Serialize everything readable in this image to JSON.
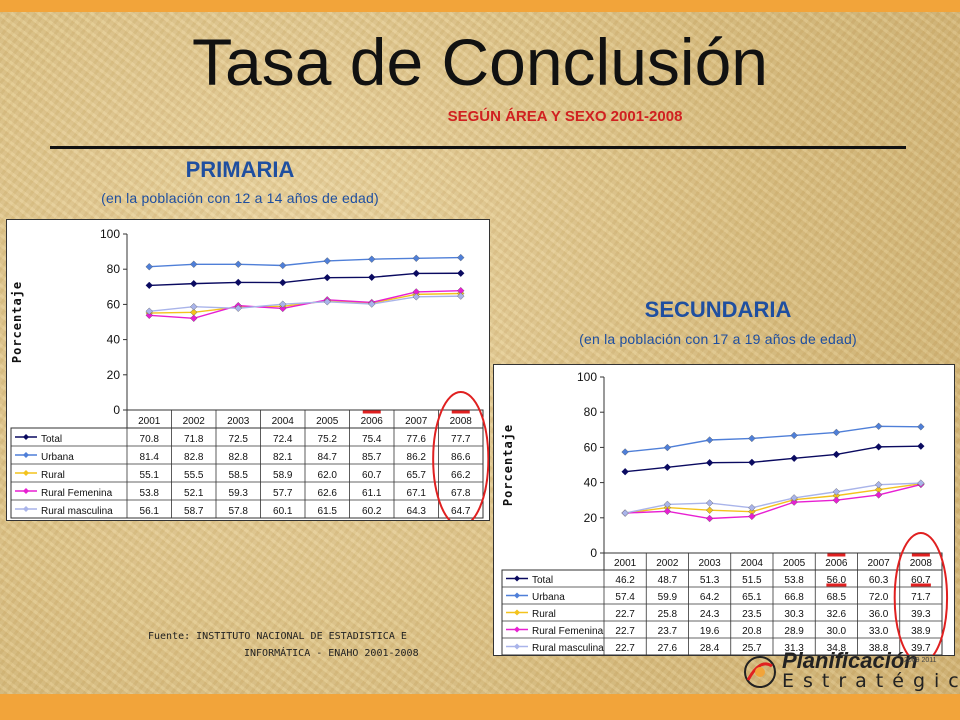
{
  "page": {
    "title": "Tasa de Conclusión",
    "subtitle": "SEGÚN ÁREA Y SEXO 2001-2008",
    "source_line1": "Fuente: INSTITUTO NACIONAL DE ESTADISTICA E",
    "source_line2": "INFORMÁTICA - ENAHO 2001-2008",
    "logo_main": "Planificación",
    "logo_sub": "Estratégica",
    "logo_years": "2009 2011",
    "colors": {
      "accent_bar": "#f2a43a",
      "heading": "#1f4fa0",
      "subtitle": "#d02020",
      "highlight": "#e02020"
    }
  },
  "primaria": {
    "heading": "PRIMARIA",
    "subheading": "(en la población con 12 a 14 años de edad)"
  },
  "secundaria": {
    "heading": "SECUNDARIA",
    "subheading": "(en la población con 17 a 19 años de edad)"
  },
  "chart_data": [
    {
      "type": "line",
      "title": "",
      "ylabel": "Porcentaje",
      "xlabel": "",
      "ylim": [
        0,
        100
      ],
      "yticks": [
        0,
        20,
        40,
        60,
        80,
        100
      ],
      "grid": false,
      "legend": "data-table-below",
      "categories": [
        "2001",
        "2002",
        "2003",
        "2004",
        "2005",
        "2006",
        "2007",
        "2008"
      ],
      "table_values": [
        [
          "70.8",
          "71.8",
          "72.5",
          "72.4",
          "75.2",
          "75.4",
          "77.6",
          "77.7"
        ],
        [
          "81.4",
          "82.8",
          "82.8",
          "82.1",
          "84.7",
          "85.7",
          "86.2",
          "86.6"
        ],
        [
          "55.1",
          "55.5",
          "58.5",
          "58.9",
          "62.0",
          "60.7",
          "65.7",
          "66.2"
        ],
        [
          "53.8",
          "52.1",
          "59.3",
          "57.7",
          "62.6",
          "61.1",
          "67.1",
          "67.8"
        ],
        [
          "56.1",
          "58.7",
          "57.8",
          "60.1",
          "61.5",
          "60.2",
          "64.3",
          "64.7"
        ]
      ],
      "series": [
        {
          "name": "Total",
          "color": "#0a0a60",
          "marker": "diamond",
          "values": [
            70.8,
            71.8,
            72.5,
            72.4,
            75.2,
            75.4,
            77.6,
            77.7
          ]
        },
        {
          "name": "Urbana",
          "color": "#4f7fd8",
          "marker": "diamond",
          "values": [
            81.4,
            82.8,
            82.8,
            82.1,
            84.7,
            85.7,
            86.2,
            86.6
          ]
        },
        {
          "name": "Rural",
          "color": "#f3c31d",
          "marker": "diamond",
          "values": [
            55.1,
            55.5,
            58.5,
            58.9,
            62.0,
            60.7,
            65.7,
            66.2
          ]
        },
        {
          "name": "Rural Femenina",
          "color": "#e81fd2",
          "marker": "diamond",
          "values": [
            53.8,
            52.1,
            59.3,
            57.7,
            62.6,
            61.1,
            67.1,
            67.8
          ]
        },
        {
          "name": "Rural masculina",
          "color": "#a9b4ea",
          "marker": "diamond",
          "values": [
            56.1,
            58.7,
            57.8,
            60.1,
            61.5,
            60.2,
            64.3,
            64.7
          ]
        }
      ]
    },
    {
      "type": "line",
      "title": "",
      "ylabel": "Porcentaje",
      "xlabel": "",
      "ylim": [
        0,
        100
      ],
      "yticks": [
        0,
        20,
        40,
        60,
        80,
        100
      ],
      "grid": false,
      "legend": "data-table-below",
      "categories": [
        "2001",
        "2002",
        "2003",
        "2004",
        "2005",
        "2006",
        "2007",
        "2008"
      ],
      "table_values": [
        [
          "46.2",
          "48.7",
          "51.3",
          "51.5",
          "53.8",
          "56.0",
          "60.3",
          "60.7"
        ],
        [
          "57.4",
          "59.9",
          "64.2",
          "65.1",
          "66.8",
          "68.5",
          "72.0",
          "71.7"
        ],
        [
          "22.7",
          "25.8",
          "24.3",
          "23.5",
          "30.3",
          "32.6",
          "36.0",
          "39.3"
        ],
        [
          "22.7",
          "23.7",
          "19.6",
          "20.8",
          "28.9",
          "30.0",
          "33.0",
          "38.9"
        ],
        [
          "22.7",
          "27.6",
          "28.4",
          "25.7",
          "31.3",
          "34.8",
          "38.8",
          "39.7"
        ]
      ],
      "series": [
        {
          "name": "Total",
          "color": "#0a0a60",
          "marker": "diamond",
          "values": [
            46.2,
            48.7,
            51.3,
            51.5,
            53.8,
            56.0,
            60.3,
            60.7
          ]
        },
        {
          "name": "Urbana",
          "color": "#4f7fd8",
          "marker": "diamond",
          "values": [
            57.4,
            59.9,
            64.2,
            65.1,
            66.8,
            68.5,
            72.0,
            71.7
          ]
        },
        {
          "name": "Rural",
          "color": "#f3c31d",
          "marker": "diamond",
          "values": [
            22.7,
            25.8,
            24.3,
            23.5,
            30.3,
            32.6,
            36.0,
            39.3
          ]
        },
        {
          "name": "Rural Femenina",
          "color": "#e81fd2",
          "marker": "diamond",
          "values": [
            22.7,
            23.7,
            19.6,
            20.8,
            28.9,
            30.0,
            33.0,
            38.9
          ]
        },
        {
          "name": "Rural masculina",
          "color": "#a9b4ea",
          "marker": "diamond",
          "values": [
            22.7,
            27.6,
            28.4,
            25.7,
            31.3,
            34.8,
            38.8,
            39.7
          ]
        }
      ]
    }
  ]
}
